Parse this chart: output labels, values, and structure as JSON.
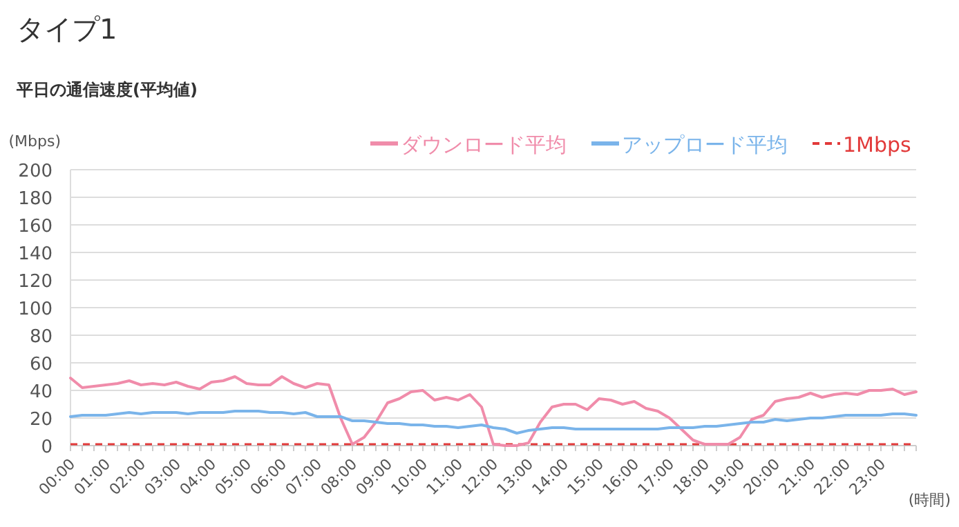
{
  "chart_data": {
    "type": "line",
    "title": "タイプ1",
    "subtitle": "平日の通信速度(平均値)",
    "xlabel": "(時間)",
    "ylabel": "(Mbps)",
    "categories": [
      "00:00",
      null,
      null,
      "01:00",
      null,
      null,
      "02:00",
      null,
      null,
      "03:00",
      null,
      null,
      "04:00",
      null,
      null,
      "05:00",
      null,
      null,
      "06:00",
      null,
      null,
      "07:00",
      null,
      null,
      "08:00",
      null,
      null,
      "09:00",
      null,
      null,
      "10:00",
      null,
      null,
      "11:00",
      null,
      null,
      "12:00",
      null,
      null,
      "13:00",
      null,
      null,
      "14:00",
      null,
      null,
      "15:00",
      null,
      null,
      "16:00",
      null,
      null,
      "17:00",
      null,
      null,
      "18:00",
      null,
      null,
      "19:00",
      null,
      null,
      "20:00",
      null,
      null,
      "21:00",
      null,
      null,
      "22:00",
      null,
      null,
      "23:00",
      null,
      null,
      null
    ],
    "series": [
      {
        "name": "ダウンロード平均",
        "color": "#f08caa",
        "values": [
          49,
          42,
          43,
          44,
          45,
          47,
          44,
          45,
          44,
          46,
          43,
          41,
          46,
          47,
          50,
          45,
          44,
          44,
          50,
          45,
          42,
          45,
          44,
          20,
          1,
          6,
          17,
          31,
          34,
          39,
          40,
          33,
          35,
          33,
          37,
          28,
          1,
          0,
          0,
          2,
          17,
          28,
          30,
          30,
          26,
          34,
          33,
          30,
          32,
          27,
          25,
          20,
          12,
          4,
          1,
          1,
          1,
          6,
          19,
          22,
          32,
          34,
          35,
          38,
          35,
          37,
          38,
          37,
          40,
          40,
          41,
          37,
          39
        ]
      },
      {
        "name": "アップロード平均",
        "color": "#7ab4ea",
        "values": [
          21,
          22,
          22,
          22,
          23,
          24,
          23,
          24,
          24,
          24,
          23,
          24,
          24,
          24,
          25,
          25,
          25,
          24,
          24,
          23,
          24,
          21,
          21,
          21,
          18,
          18,
          17,
          16,
          16,
          15,
          15,
          14,
          14,
          13,
          14,
          15,
          13,
          12,
          9,
          11,
          12,
          13,
          13,
          12,
          12,
          12,
          12,
          12,
          12,
          12,
          12,
          13,
          13,
          13,
          14,
          14,
          15,
          16,
          17,
          17,
          19,
          18,
          19,
          20,
          20,
          21,
          22,
          22,
          22,
          22,
          23,
          23,
          22
        ]
      }
    ],
    "ref_lines": [
      {
        "axis": "y",
        "value": 1,
        "label": "1Mbps",
        "color": "#e23a3a",
        "line_style": "dashed"
      }
    ],
    "ylim": [
      0,
      200
    ],
    "yticks": [
      0,
      20,
      40,
      60,
      80,
      100,
      120,
      140,
      160,
      180,
      200
    ],
    "grid": "y",
    "legend": "top right",
    "marker": "none",
    "line_style": "solid"
  }
}
